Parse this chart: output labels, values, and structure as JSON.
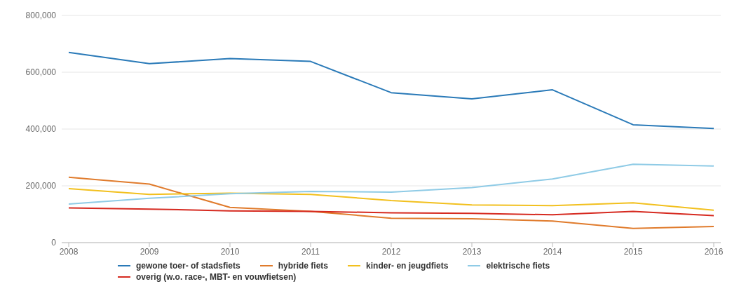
{
  "chart_data": {
    "type": "line",
    "categories": [
      "2008",
      "2009",
      "2010",
      "2011",
      "2012",
      "2013",
      "2014",
      "2015",
      "2016"
    ],
    "series": [
      {
        "name": "gewone toer- of stadsfiets",
        "color": "#2a7ab8",
        "values": [
          670000,
          630000,
          648000,
          638000,
          528000,
          506000,
          538000,
          415000,
          402000
        ]
      },
      {
        "name": "hybride fiets",
        "color": "#e07b2c",
        "values": [
          230000,
          206000,
          124000,
          110000,
          86000,
          84000,
          76000,
          50000,
          57000
        ]
      },
      {
        "name": "kinder- en jeugdfiets",
        "color": "#f2c01e",
        "values": [
          190000,
          170000,
          174000,
          170000,
          148000,
          133000,
          130000,
          140000,
          114000
        ]
      },
      {
        "name": "elektrische fiets",
        "color": "#8fcbe6",
        "values": [
          136000,
          156000,
          172000,
          180000,
          178000,
          194000,
          224000,
          276000,
          270000
        ]
      },
      {
        "name": "overig (w.o. race-, MBT- en vouwfietsen)",
        "color": "#d62a20",
        "values": [
          122000,
          118000,
          112000,
          110000,
          105000,
          103000,
          98000,
          110000,
          95000
        ]
      }
    ],
    "ylim": [
      0,
      800000
    ],
    "yticks": [
      0,
      {
        "value": 200000,
        "label": "200,000"
      },
      {
        "value": 400000,
        "label": "400,000"
      },
      {
        "value": 600000,
        "label": "600,000"
      },
      {
        "value": 800000,
        "label": "800,000"
      }
    ],
    "grid": "y",
    "legend": "bottom",
    "marker": "none",
    "line_style": "solid"
  }
}
